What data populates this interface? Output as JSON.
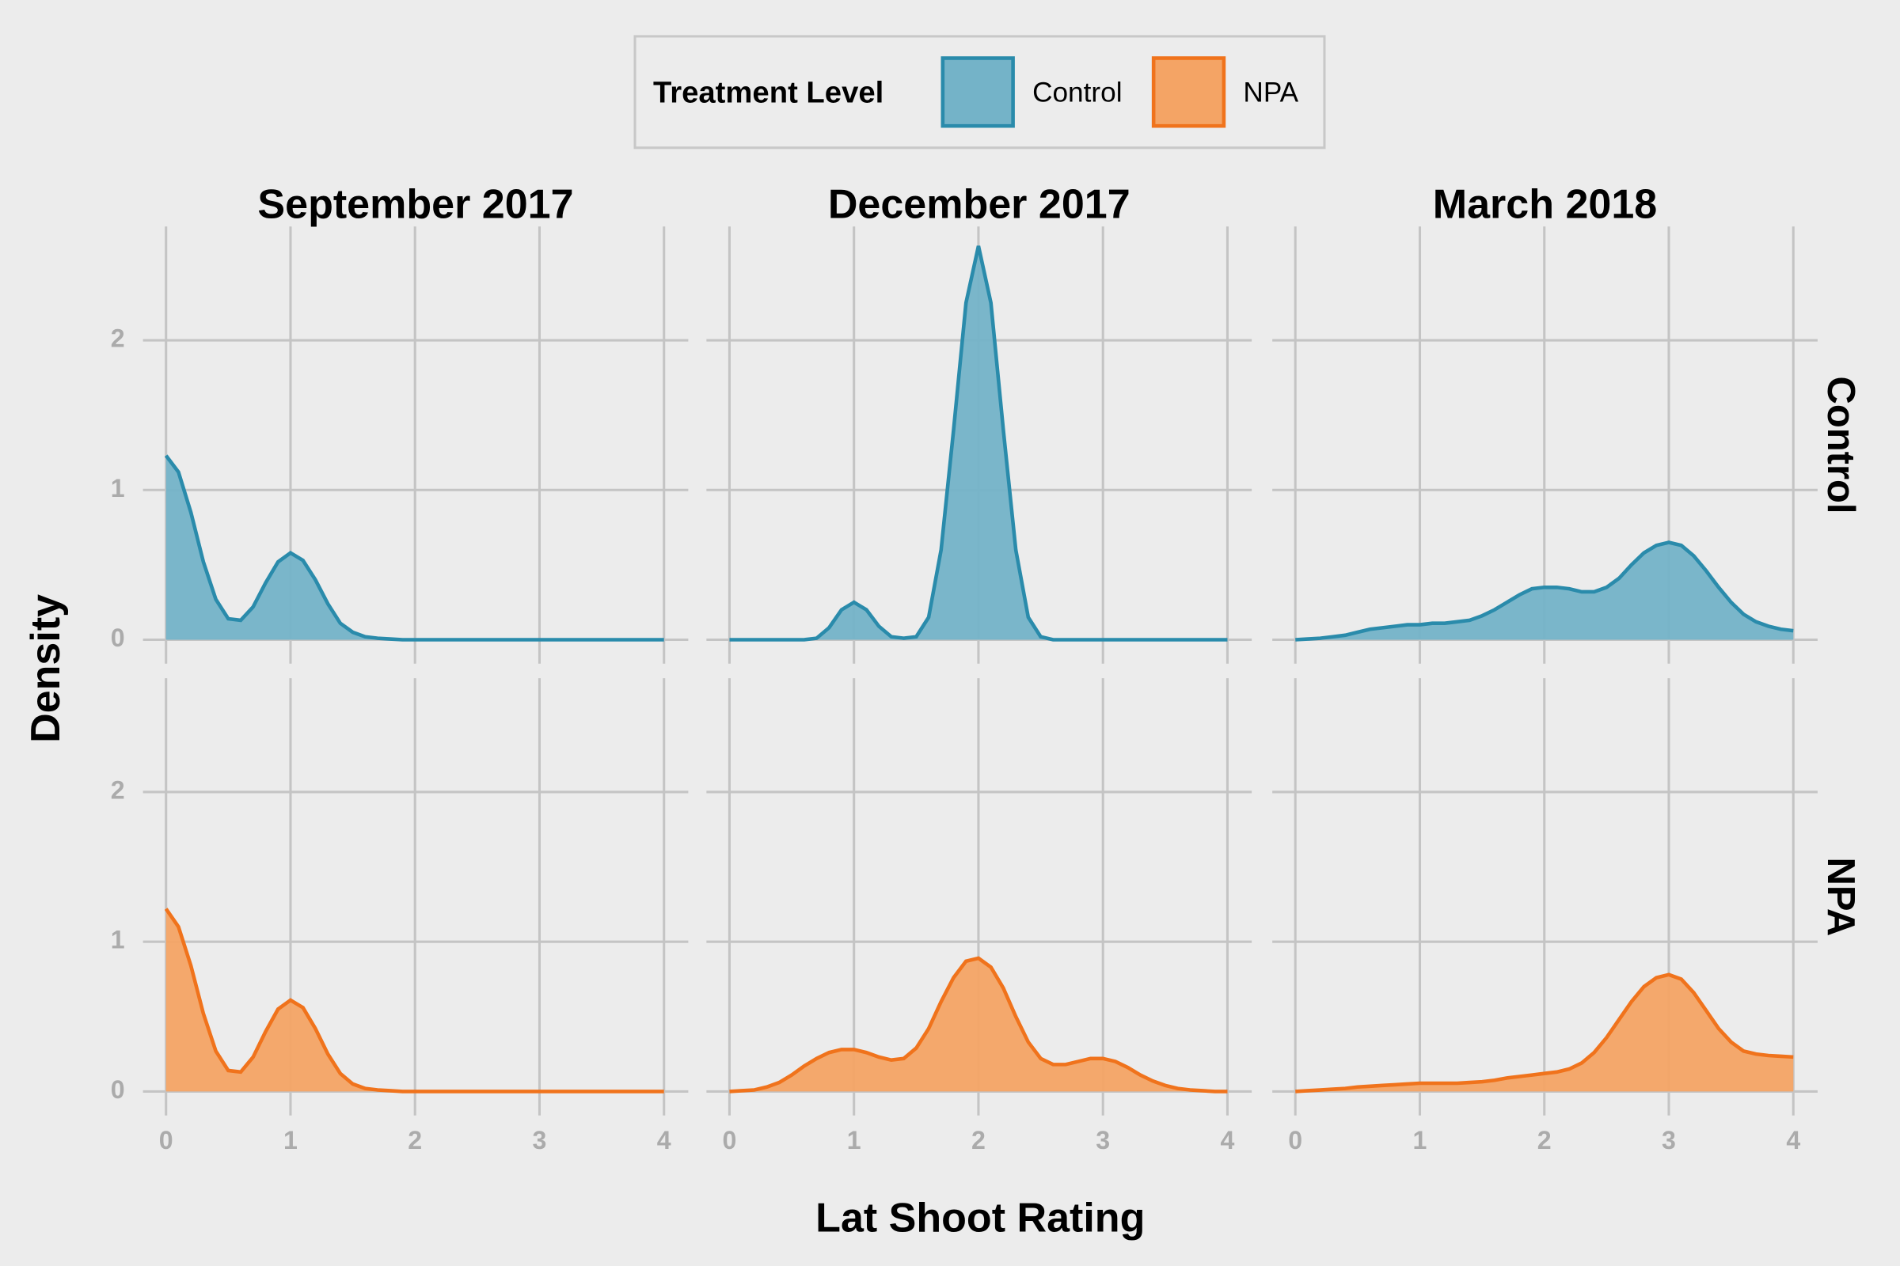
{
  "chart_data": {
    "type": "area",
    "legend_title": "Treatment Level",
    "x_label": "Lat Shoot Rating",
    "y_label": "Density",
    "facet_columns": [
      "September 2017",
      "December 2017",
      "March 2018"
    ],
    "xlim": [
      -0.185,
      4.195
    ],
    "ylim": [
      -0.16,
      2.76
    ],
    "xticks": [
      0,
      1,
      2,
      3,
      4
    ],
    "yticks": [
      0,
      1,
      2
    ],
    "grid": true,
    "x": [
      0,
      0.1,
      0.2,
      0.3,
      0.4,
      0.5,
      0.6,
      0.7,
      0.8,
      0.9,
      1,
      1.1,
      1.2,
      1.3,
      1.4,
      1.5,
      1.6,
      1.7,
      1.8,
      1.9,
      2,
      2.1,
      2.2,
      2.3,
      2.4,
      2.5,
      2.6,
      2.7,
      2.8,
      2.9,
      3,
      3.1,
      3.2,
      3.3,
      3.4,
      3.5,
      3.6,
      3.7,
      3.8,
      3.9,
      4
    ],
    "series": [
      {
        "name": "Control",
        "color": "#2a8bab",
        "fill": "#74b3c8",
        "values": [
          [
            1.23,
            1.12,
            0.85,
            0.52,
            0.27,
            0.14,
            0.13,
            0.22,
            0.38,
            0.52,
            0.58,
            0.53,
            0.4,
            0.24,
            0.11,
            0.05,
            0.02,
            0.01,
            0.005,
            0,
            0,
            0,
            0,
            0,
            0,
            0,
            0,
            0,
            0,
            0,
            0,
            0,
            0,
            0,
            0,
            0,
            0,
            0,
            0,
            0,
            0
          ],
          [
            0,
            0,
            0,
            0,
            0,
            0,
            0,
            0.01,
            0.08,
            0.2,
            0.25,
            0.2,
            0.09,
            0.02,
            0.01,
            0.02,
            0.15,
            0.6,
            1.4,
            2.25,
            2.63,
            2.25,
            1.4,
            0.6,
            0.15,
            0.02,
            0,
            0,
            0,
            0,
            0,
            0,
            0,
            0,
            0,
            0,
            0,
            0,
            0,
            0,
            0
          ],
          [
            0,
            0.005,
            0.01,
            0.02,
            0.03,
            0.05,
            0.07,
            0.08,
            0.09,
            0.1,
            0.1,
            0.11,
            0.11,
            0.12,
            0.13,
            0.16,
            0.2,
            0.25,
            0.3,
            0.34,
            0.35,
            0.35,
            0.34,
            0.32,
            0.32,
            0.35,
            0.41,
            0.5,
            0.58,
            0.63,
            0.65,
            0.63,
            0.56,
            0.46,
            0.35,
            0.25,
            0.17,
            0.12,
            0.09,
            0.07,
            0.06
          ]
        ]
      },
      {
        "name": "NPA",
        "color": "#f0731c",
        "fill": "#f4a465",
        "values": [
          [
            1.22,
            1.1,
            0.84,
            0.52,
            0.27,
            0.14,
            0.13,
            0.23,
            0.4,
            0.55,
            0.61,
            0.56,
            0.42,
            0.25,
            0.12,
            0.05,
            0.02,
            0.01,
            0.005,
            0,
            0,
            0,
            0,
            0,
            0,
            0,
            0,
            0,
            0,
            0,
            0,
            0,
            0,
            0,
            0,
            0,
            0,
            0,
            0,
            0,
            0
          ],
          [
            0,
            0.005,
            0.01,
            0.03,
            0.06,
            0.11,
            0.17,
            0.22,
            0.26,
            0.28,
            0.28,
            0.26,
            0.23,
            0.21,
            0.22,
            0.29,
            0.42,
            0.6,
            0.76,
            0.87,
            0.89,
            0.83,
            0.69,
            0.5,
            0.33,
            0.22,
            0.18,
            0.18,
            0.2,
            0.22,
            0.22,
            0.2,
            0.16,
            0.11,
            0.07,
            0.04,
            0.02,
            0.01,
            0.005,
            0,
            0
          ],
          [
            0,
            0.005,
            0.01,
            0.015,
            0.02,
            0.03,
            0.035,
            0.04,
            0.045,
            0.05,
            0.055,
            0.055,
            0.055,
            0.055,
            0.06,
            0.065,
            0.075,
            0.09,
            0.1,
            0.11,
            0.12,
            0.13,
            0.15,
            0.19,
            0.26,
            0.36,
            0.48,
            0.6,
            0.7,
            0.76,
            0.78,
            0.75,
            0.66,
            0.54,
            0.42,
            0.33,
            0.27,
            0.25,
            0.24,
            0.235,
            0.23
          ]
        ]
      }
    ]
  }
}
